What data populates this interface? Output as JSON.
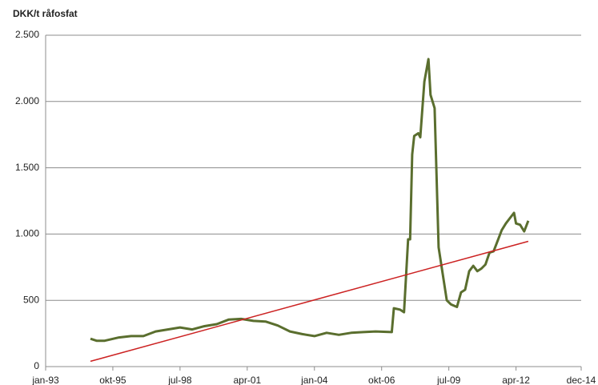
{
  "chart_data": {
    "type": "line",
    "y_label": "DKK/t råfosfat",
    "x": [
      "1994-11",
      "1995-02",
      "1995-06",
      "1996-01",
      "1996-07",
      "1997-01",
      "1997-07",
      "1998-01",
      "1998-07",
      "1999-01",
      "1999-07",
      "2000-01",
      "2000-07",
      "2001-01",
      "2001-07",
      "2002-01",
      "2002-07",
      "2003-01",
      "2003-07",
      "2004-01",
      "2004-07",
      "2005-01",
      "2005-07",
      "2006-01",
      "2006-07",
      "2007-03",
      "2007-04",
      "2007-07",
      "2007-09",
      "2007-11",
      "2007-12",
      "2008-01",
      "2008-02",
      "2008-04",
      "2008-05",
      "2008-07",
      "2008-09",
      "2008-10",
      "2008-12",
      "2009-02",
      "2009-04",
      "2009-06",
      "2009-08",
      "2009-11",
      "2010-01",
      "2010-03",
      "2010-05",
      "2010-07",
      "2010-09",
      "2010-11",
      "2011-01",
      "2011-03",
      "2011-05",
      "2011-07",
      "2011-09",
      "2011-11",
      "2012-01",
      "2012-03",
      "2012-04",
      "2012-06",
      "2012-08",
      "2012-10"
    ],
    "series": [
      {
        "color": "#5a6e2e",
        "values": [
          210,
          195,
          195,
          220,
          230,
          230,
          265,
          280,
          295,
          280,
          305,
          320,
          355,
          360,
          345,
          340,
          310,
          265,
          245,
          230,
          255,
          240,
          255,
          260,
          265,
          260,
          440,
          430,
          410,
          960,
          960,
          1600,
          1740,
          1760,
          1730,
          2150,
          2320,
          2050,
          1950,
          900,
          700,
          500,
          470,
          450,
          560,
          580,
          720,
          760,
          720,
          740,
          770,
          860,
          870,
          950,
          1030,
          1080,
          1120,
          1160,
          1080,
          1070,
          1020,
          1100
        ]
      },
      {
        "color": "#cc2222",
        "x": [
          "1994-11",
          "2012-10"
        ],
        "values": [
          40,
          945
        ]
      }
    ],
    "xlim": [
      "1993-01",
      "2014-12"
    ],
    "xticks": [
      {
        "value": "1993-01",
        "label": "jan-93"
      },
      {
        "value": "1995-10",
        "label": "okt-95"
      },
      {
        "value": "1998-07",
        "label": "jul-98"
      },
      {
        "value": "2001-04",
        "label": "apr-01"
      },
      {
        "value": "2004-01",
        "label": "jan-04"
      },
      {
        "value": "2006-10",
        "label": "okt-06"
      },
      {
        "value": "2009-07",
        "label": "jul-09"
      },
      {
        "value": "2012-04",
        "label": "apr-12"
      },
      {
        "value": "2014-12",
        "label": "dec-14"
      }
    ],
    "ylim": [
      0,
      2500
    ],
    "yticks": [
      0,
      500,
      {
        "value": 1000,
        "label": "1.000"
      },
      {
        "value": 1500,
        "label": "1.500"
      },
      {
        "value": 2000,
        "label": "2.000"
      },
      {
        "value": 2500,
        "label": "2.500"
      }
    ],
    "grid": true
  }
}
